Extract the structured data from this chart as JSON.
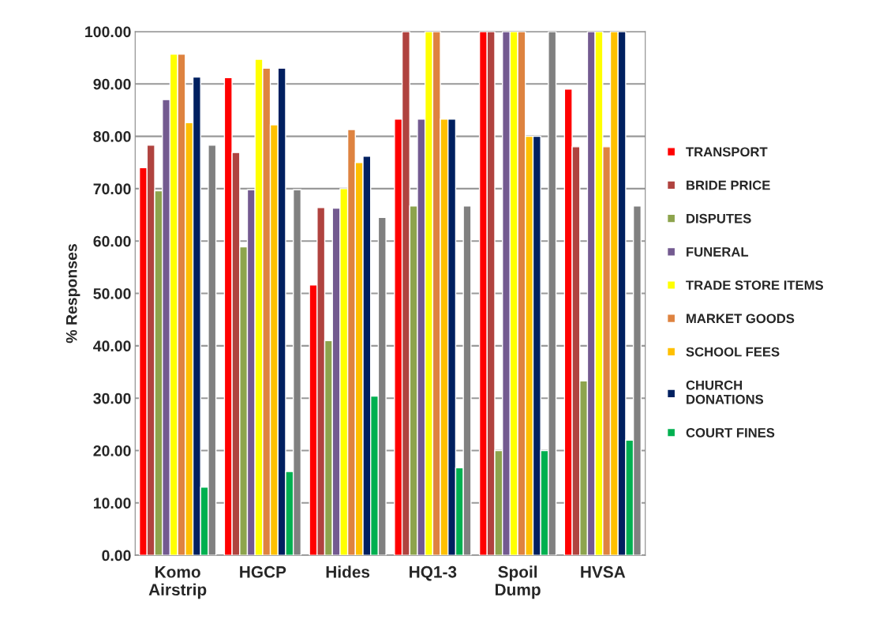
{
  "chart_data": {
    "type": "bar",
    "ylabel": "% Responses",
    "categories": [
      "Komo\nAirstrip",
      "HGCP",
      "Hides",
      "HQ1-3",
      "Spoil\nDump",
      "HVSA"
    ],
    "series": [
      {
        "name": "TRANSPORT",
        "color": "#ff0000",
        "values": [
          74,
          91.2,
          51.6,
          83.3,
          100,
          89
        ]
      },
      {
        "name": "BRIDE PRICE",
        "color": "#b0433f",
        "values": [
          78.3,
          76.9,
          66.4,
          100,
          100,
          78
        ]
      },
      {
        "name": "DISPUTES",
        "color": "#8da44d",
        "values": [
          69.6,
          58.9,
          41,
          66.7,
          20,
          33.3
        ]
      },
      {
        "name": "FUNERAL",
        "color": "#735a90",
        "values": [
          87,
          69.8,
          66.3,
          83.3,
          100,
          100
        ]
      },
      {
        "name": "TRADE STORE ITEMS",
        "color": "#ffff00",
        "values": [
          95.7,
          94.7,
          70,
          100,
          100,
          100
        ]
      },
      {
        "name": "MARKET GOODS",
        "color": "#de8340",
        "values": [
          95.7,
          93,
          81.3,
          100,
          100,
          78
        ]
      },
      {
        "name": "SCHOOL FEES",
        "color": "#ffc000",
        "values": [
          82.6,
          82.2,
          75,
          83.3,
          80,
          100
        ]
      },
      {
        "name": "CHURCH\nDONATIONS",
        "color": "#002060",
        "values": [
          91.3,
          93,
          76.2,
          83.3,
          80,
          100
        ]
      },
      {
        "name": "COURT FINES",
        "color": "#00b050",
        "values": [
          13,
          16,
          30.4,
          16.7,
          20,
          22
        ]
      },
      {
        "color": "#808080",
        "values": [
          78.3,
          69.8,
          64.5,
          66.7,
          100,
          66.7
        ]
      }
    ],
    "ylim": [
      0,
      100
    ],
    "yticks": [
      {
        "value": 0,
        "label": "0.00"
      },
      {
        "value": 10,
        "label": "10.00"
      },
      {
        "value": 20,
        "label": "20.00"
      },
      {
        "value": 30,
        "label": "30.00"
      },
      {
        "value": 40,
        "label": "40.00"
      },
      {
        "value": 50,
        "label": "50.00"
      },
      {
        "value": 60,
        "label": "60.00"
      },
      {
        "value": 70,
        "label": "70.00"
      },
      {
        "value": 80,
        "label": "80.00"
      },
      {
        "value": 90,
        "label": "90.00"
      },
      {
        "value": 100,
        "label": "100.00"
      }
    ],
    "grid": "y",
    "legend": "right"
  }
}
